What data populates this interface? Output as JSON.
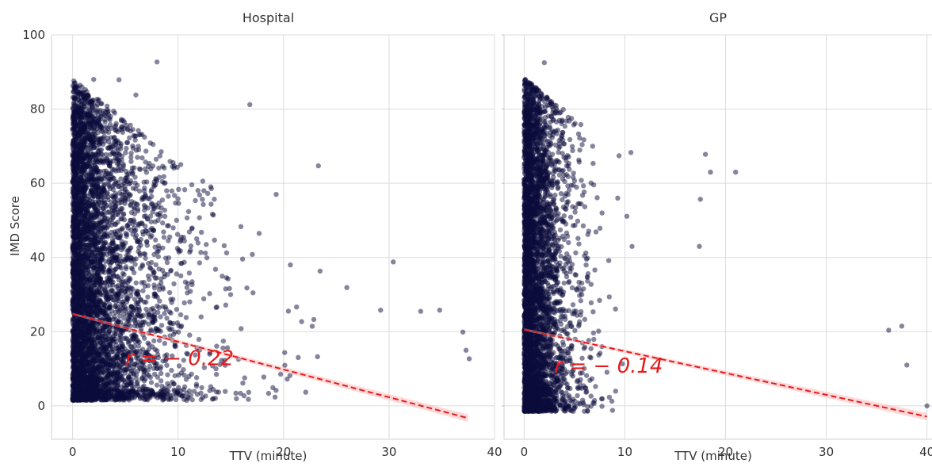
{
  "chart_data": [
    {
      "type": "scatter",
      "title": "Hospital",
      "xlabel": "TTV (minute)",
      "ylabel": "IMD Score",
      "xlim": [
        -2,
        40
      ],
      "ylim": [
        -9,
        100
      ],
      "xticks": [
        "0",
        "10",
        "20",
        "30",
        "40"
      ],
      "yticks": [
        "0",
        "20",
        "40",
        "60",
        "80",
        "100"
      ],
      "grid": true,
      "point_color": "#0b0b3b",
      "trend_color": "#e41a1c",
      "trendline": {
        "x": [
          0,
          37.5
        ],
        "y": [
          24.8,
          -3.3
        ]
      },
      "annotation": {
        "text": "r = − 0.22",
        "x": 5,
        "y": 11
      },
      "outliers": [
        {
          "x": 8.0,
          "y": 92.7
        },
        {
          "x": 16.8,
          "y": 81.2
        },
        {
          "x": 23.3,
          "y": 64.7
        },
        {
          "x": 19.3,
          "y": 57.0
        },
        {
          "x": 30.4,
          "y": 38.8
        },
        {
          "x": 37.0,
          "y": 19.9
        },
        {
          "x": 37.3,
          "y": 15.0
        },
        {
          "x": 37.6,
          "y": 12.7
        },
        {
          "x": 34.8,
          "y": 25.8
        },
        {
          "x": 33.0,
          "y": 25.5
        },
        {
          "x": 29.2,
          "y": 25.8
        },
        {
          "x": 26.0,
          "y": 31.9
        },
        {
          "x": 2.0,
          "y": 88.0
        },
        {
          "x": 4.4,
          "y": 87.9
        },
        {
          "x": 6.0,
          "y": 83.8
        }
      ],
      "cloud": {
        "n": 4200,
        "ttv_scale": 3.4,
        "imd_min": 1.5,
        "imd_max": 88.0,
        "slope": -0.75
      }
    },
    {
      "type": "scatter",
      "title": "GP",
      "xlabel": "TTV (minute)",
      "ylabel": "",
      "xlim": [
        -2,
        40.5
      ],
      "ylim": [
        -9,
        100
      ],
      "xticks": [
        "0",
        "10",
        "20",
        "30",
        "40"
      ],
      "yticks": [
        "",
        "",
        "",
        "",
        "",
        ""
      ],
      "grid": true,
      "point_color": "#0b0b3b",
      "trend_color": "#e41a1c",
      "trendline": {
        "x": [
          0,
          40
        ],
        "y": [
          20.6,
          -2.9
        ]
      },
      "annotation": {
        "text": "r = − 0.14",
        "x": 3,
        "y": 9
      },
      "outliers": [
        {
          "x": 2.0,
          "y": 92.5
        },
        {
          "x": 10.6,
          "y": 68.3
        },
        {
          "x": 18.0,
          "y": 67.8
        },
        {
          "x": 21.0,
          "y": 63.0
        },
        {
          "x": 18.5,
          "y": 63.0
        },
        {
          "x": 17.5,
          "y": 55.7
        },
        {
          "x": 10.2,
          "y": 51.1
        },
        {
          "x": 17.4,
          "y": 43.0
        },
        {
          "x": 40.0,
          "y": 0.0
        },
        {
          "x": 37.5,
          "y": 21.5
        },
        {
          "x": 36.2,
          "y": 20.4
        },
        {
          "x": 38.0,
          "y": 11.0
        }
      ],
      "cloud": {
        "n": 3200,
        "ttv_scale": 1.6,
        "imd_min": -1.5,
        "imd_max": 88.5,
        "slope": -0.55
      }
    }
  ]
}
